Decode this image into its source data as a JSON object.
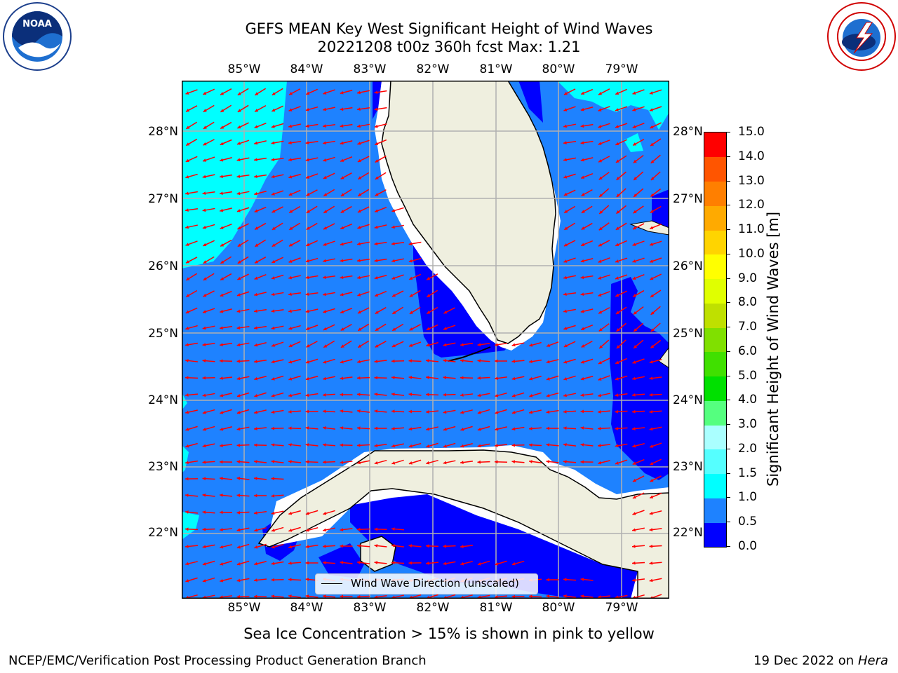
{
  "title": {
    "line1": "GEFS MEAN Key West Significant Height of Wind Waves",
    "line2": "20221208 t00z 360h fcst   Max: 1.21"
  },
  "logos": {
    "left": {
      "icon": "noaa-logo",
      "text": "NOAA",
      "ring_text": "NATIONAL OCEANIC AND ATMOSPHERIC ADMINISTRATION · U.S. DEPARTMENT OF COMMERCE"
    },
    "right": {
      "icon": "nws-logo",
      "ring_text": "NATIONAL WEATHER SERVICE"
    }
  },
  "map": {
    "lon_labels": [
      "85°W",
      "84°W",
      "83°W",
      "82°W",
      "81°W",
      "80°W",
      "79°W"
    ],
    "lat_labels": [
      "28°N",
      "27°N",
      "26°N",
      "25°N",
      "24°N",
      "23°N",
      "22°N"
    ],
    "legend_label": "Wind Wave Direction (unscaled)",
    "colors": {
      "ocean": "#1e82ff",
      "deep": "#0000ff",
      "shallow": "#00ffff",
      "land": "#efefdf",
      "arrow": "#ff0000",
      "grid": "#b0b0b0"
    }
  },
  "colorbar": {
    "label": "Significant Height of Wind Waves [m]",
    "ticks": [
      "0.0",
      "0.5",
      "1.0",
      "1.5",
      "2.0",
      "3.0",
      "4.0",
      "5.0",
      "6.0",
      "7.0",
      "8.0",
      "9.0",
      "10.0",
      "11.0",
      "12.0",
      "13.0",
      "14.0",
      "15.0"
    ],
    "colors": [
      "#0000ff",
      "#1e82ff",
      "#00ffff",
      "#55ffff",
      "#aaffff",
      "#55ff7f",
      "#00e000",
      "#40e000",
      "#80e000",
      "#bfe000",
      "#e0ff00",
      "#ffff00",
      "#ffd400",
      "#ffaa00",
      "#ff7f00",
      "#ff5500",
      "#ff0000"
    ]
  },
  "note": "Sea Ice Concentration > 15% is shown in pink to yellow",
  "footer": {
    "left": "NCEP/EMC/Verification Post Processing Product Generation Branch",
    "date": "19 Dec 2022 on",
    "host": "Hera"
  }
}
